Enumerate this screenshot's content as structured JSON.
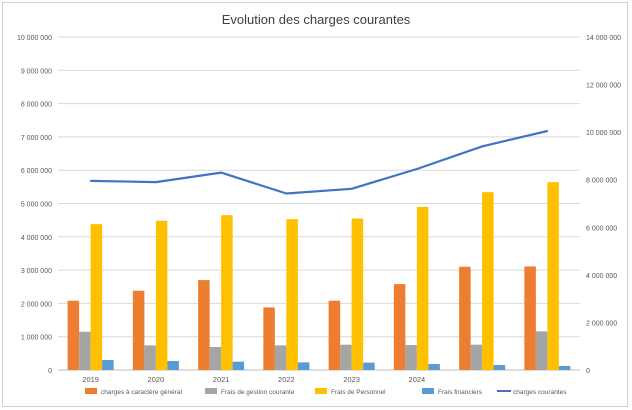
{
  "chart_data": {
    "type": "bar",
    "title": "Evolution des charges courantes",
    "categories": [
      "2019",
      "2020",
      "2021",
      "2022",
      "2023",
      "2024",
      "",
      ""
    ],
    "y_left": {
      "ylim": [
        0,
        10000000
      ],
      "ticks": [
        "0",
        "1 000 000",
        "2 000 000",
        "3 000 000",
        "4 000 000",
        "5 000 000",
        "6 000 000",
        "7 000 000",
        "8 000 000",
        "9 000 000",
        "10 000 000"
      ]
    },
    "y_right": {
      "ylim": [
        0,
        14000000
      ],
      "ticks": [
        "0",
        "2 000 000",
        "4 000 000",
        "6 000 000",
        "8 000 000",
        "10 000 000",
        "12 000 000",
        "14 000 000"
      ]
    },
    "grid": true,
    "legend_position": "bottom",
    "series": [
      {
        "name": "charges à caractère général",
        "type": "bar",
        "axis": "left",
        "color": "#ed7d31",
        "values": [
          2080000,
          2380000,
          2700000,
          1880000,
          2080000,
          2580000,
          3100000,
          3110000
        ]
      },
      {
        "name": "Frais de gestion courante",
        "type": "bar",
        "axis": "left",
        "color": "#a5a5a5",
        "values": [
          1150000,
          740000,
          690000,
          740000,
          760000,
          750000,
          760000,
          1160000
        ]
      },
      {
        "name": "Frais de Personnel",
        "type": "bar",
        "axis": "left",
        "color": "#ffc000",
        "values": [
          4380000,
          4480000,
          4650000,
          4530000,
          4550000,
          4900000,
          5340000,
          5640000
        ]
      },
      {
        "name": "Frais financiers",
        "type": "bar",
        "axis": "left",
        "color": "#5b9bd5",
        "values": [
          300000,
          270000,
          250000,
          230000,
          220000,
          180000,
          150000,
          120000
        ]
      },
      {
        "name": "charges courantes",
        "type": "line",
        "axis": "right",
        "color": "#4472c4",
        "values": [
          7950000,
          7900000,
          8300000,
          7420000,
          7620000,
          8450000,
          9400000,
          10050000
        ]
      }
    ]
  }
}
